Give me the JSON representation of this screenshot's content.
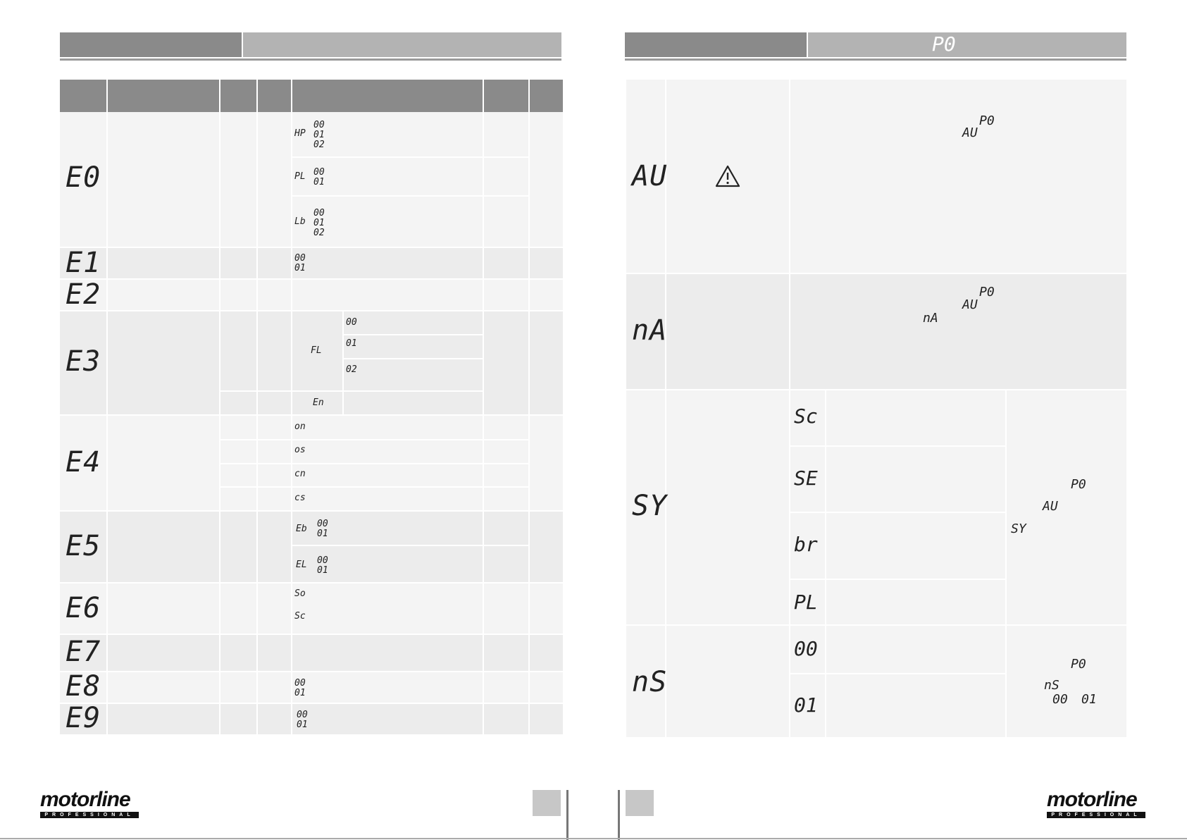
{
  "left_page": {
    "rows": [
      {
        "code": "E0",
        "groups": [
          {
            "prefix": "HP",
            "values": [
              "00",
              "01",
              "02"
            ]
          },
          {
            "prefix": "PL",
            "values": [
              "00",
              "01"
            ]
          },
          {
            "prefix": "Lb",
            "values": [
              "00",
              "01",
              "02"
            ]
          }
        ]
      },
      {
        "code": "E1",
        "values": [
          "00",
          "01"
        ]
      },
      {
        "code": "E2"
      },
      {
        "code": "E3",
        "sub_prefix": "FL",
        "sub_values": [
          "00",
          "01",
          "02"
        ],
        "extra": "En"
      },
      {
        "code": "E4",
        "items": [
          "on",
          "os",
          "cn",
          "cs"
        ]
      },
      {
        "code": "E5",
        "groups": [
          {
            "prefix": "Eb",
            "values": [
              "00",
              "01"
            ]
          },
          {
            "prefix": "EL",
            "values": [
              "00",
              "01"
            ]
          }
        ]
      },
      {
        "code": "E6",
        "items": [
          "So",
          "Sc"
        ]
      },
      {
        "code": "E7"
      },
      {
        "code": "E8",
        "values": [
          "00",
          "01"
        ]
      },
      {
        "code": "E9",
        "values": [
          "00",
          "01"
        ]
      }
    ]
  },
  "right_page": {
    "header_code": "P0",
    "rows": [
      {
        "code": "AU",
        "warning_icon": "warning-triangle-icon",
        "desc_codes": [
          "P0",
          "AU"
        ]
      },
      {
        "code": "nA",
        "desc_codes": [
          "P0",
          "AU",
          "nA"
        ]
      },
      {
        "code": "SY",
        "options": [
          "Sc",
          "SE",
          "br",
          "PL"
        ],
        "side_codes": [
          "P0",
          "AU",
          "SY"
        ]
      },
      {
        "code": "nS",
        "options": [
          "00",
          "01"
        ],
        "side_codes": [
          "P0",
          "nS",
          "00",
          "01"
        ]
      }
    ]
  },
  "footer": {
    "brand": "motorline",
    "brand_sub": "PROFESSIONAL"
  }
}
